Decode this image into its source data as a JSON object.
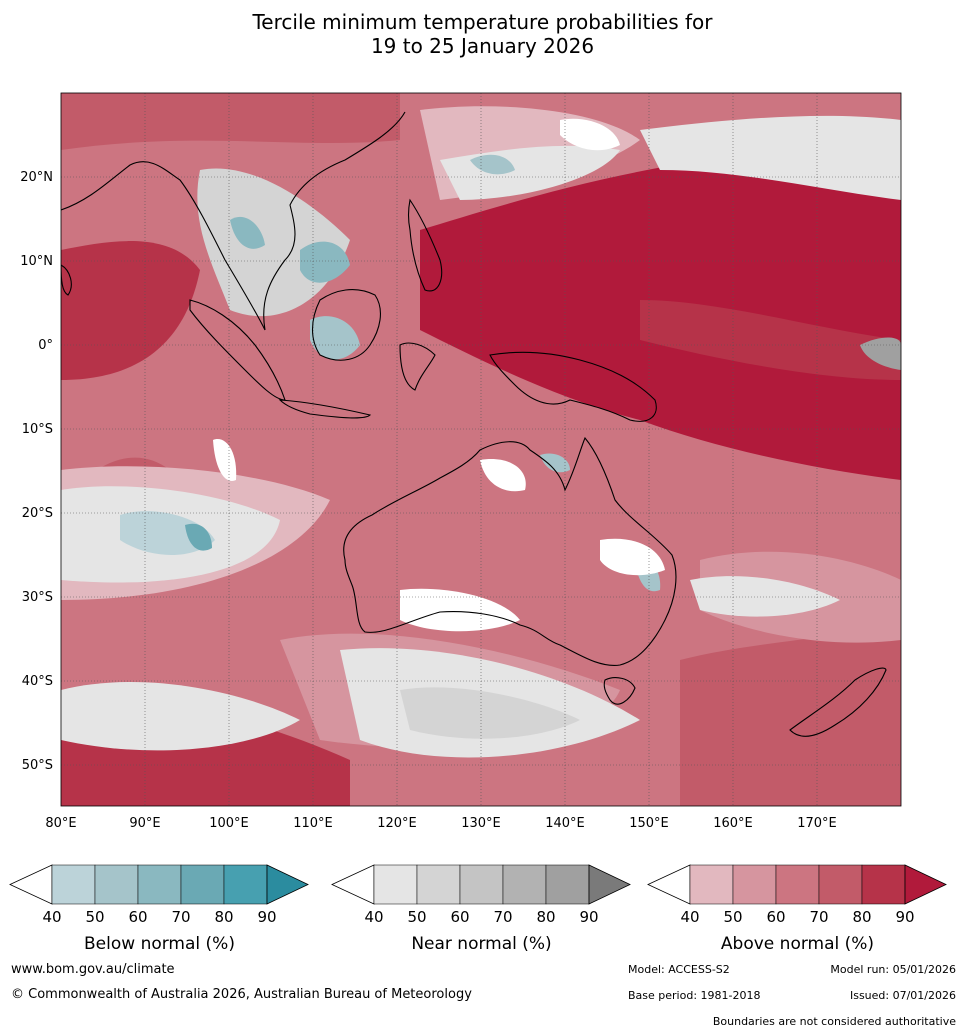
{
  "title": {
    "line1": "Tercile minimum temperature probabilities for",
    "line2": "19 to 25 January 2026"
  },
  "map": {
    "lon_range": [
      80,
      180
    ],
    "lat_range": [
      -55,
      30
    ],
    "lon_ticks": [
      "80°E",
      "90°E",
      "100°E",
      "110°E",
      "120°E",
      "130°E",
      "140°E",
      "150°E",
      "160°E",
      "170°E"
    ],
    "lat_ticks": [
      "20°N",
      "10°N",
      "0°",
      "10°S",
      "20°S",
      "30°S",
      "40°S",
      "50°S"
    ],
    "gridlines": true
  },
  "colorbars": [
    {
      "title": "Below normal (%)",
      "ticks": [
        "40",
        "50",
        "60",
        "70",
        "80",
        "90"
      ],
      "colors": [
        "#ffffff",
        "#bcd3d9",
        "#a5c4ca",
        "#8ab8c0",
        "#6aa9b4",
        "#47a0b0",
        "#2b8c9f"
      ]
    },
    {
      "title": "Near normal (%)",
      "ticks": [
        "40",
        "50",
        "60",
        "70",
        "80",
        "90"
      ],
      "colors": [
        "#ffffff",
        "#e5e5e5",
        "#d4d4d4",
        "#c4c4c4",
        "#b2b2b2",
        "#a0a0a0",
        "#7a7a7a"
      ]
    },
    {
      "title": "Above normal (%)",
      "ticks": [
        "40",
        "50",
        "60",
        "70",
        "80",
        "90"
      ],
      "colors": [
        "#ffffff",
        "#e2b8bf",
        "#d6959f",
        "#cc7581",
        "#c25b69",
        "#b63349",
        "#b11a3b"
      ]
    }
  ],
  "footer": {
    "website": "www.bom.gov.au/climate",
    "copyright": "© Commonwealth of Australia 2026, Australian Bureau of Meteorology",
    "model": "Model: ACCESS-S2",
    "model_run": "Model run: 05/01/2026",
    "base_period": "Base period: 1981-2018",
    "issued": "Issued: 07/01/2026",
    "disclaimer": "Boundaries are not considered authoritative"
  }
}
